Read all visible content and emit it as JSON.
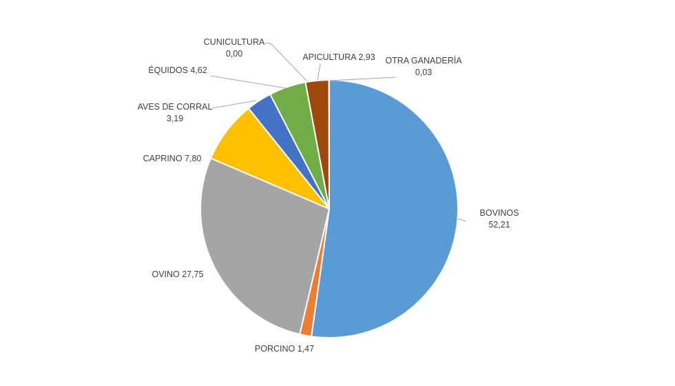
{
  "chart_data": {
    "type": "pie",
    "start_angle_deg": 0,
    "direction": "clockwise",
    "slices": [
      {
        "label": "BOVINOS",
        "value": 52.21,
        "value_text": "52,21",
        "color": "#5B9BD5"
      },
      {
        "label": "PORCINO",
        "value": 1.47,
        "value_text": "1,47",
        "color": "#ED7D31"
      },
      {
        "label": "OVINO",
        "value": 27.75,
        "value_text": "27,75",
        "color": "#A5A5A5"
      },
      {
        "label": "CAPRINO",
        "value": 7.8,
        "value_text": "7,80",
        "color": "#FFC000"
      },
      {
        "label": "AVES DE CORRAL",
        "value": 3.19,
        "value_text": "3,19",
        "color": "#4472C4"
      },
      {
        "label": "ÉQUIDOS",
        "value": 4.62,
        "value_text": "4,62",
        "color": "#70AD47"
      },
      {
        "label": "CUNICULTURA",
        "value": 0.0,
        "value_text": "0,00",
        "color": "#264478"
      },
      {
        "label": "APICULTURA",
        "value": 2.93,
        "value_text": "2,93",
        "color": "#9E480E"
      },
      {
        "label": "OTRA GANADERÍA",
        "value": 0.03,
        "value_text": "0,03",
        "color": "#636363"
      }
    ]
  }
}
